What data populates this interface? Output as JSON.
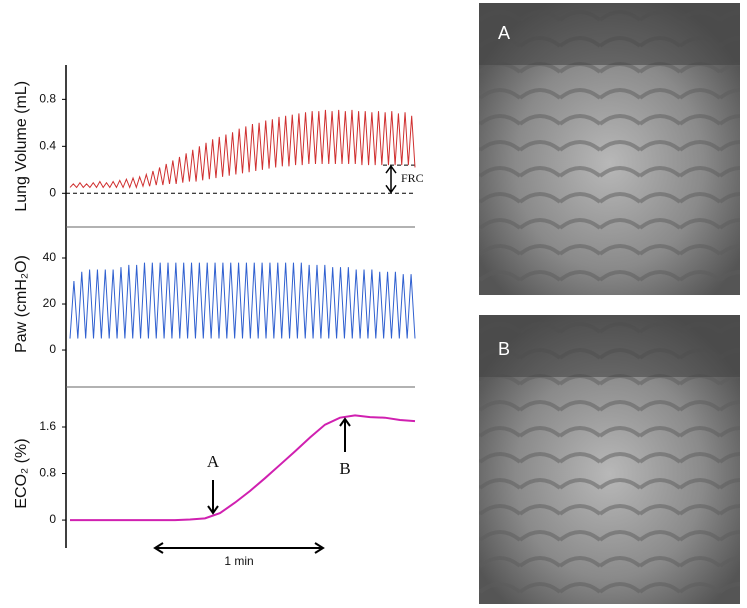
{
  "chart_data": [
    {
      "type": "line",
      "ylabel": "Lung Volume (mL)",
      "ylim": [
        -0.27,
        1.05
      ],
      "yticks": [
        0,
        0.4,
        0.8
      ],
      "color": "#d03030",
      "reference_lines": [
        0,
        0.24
      ],
      "annotations": [
        {
          "text": "FRC"
        }
      ],
      "values": [
        0.05,
        0.08,
        0.05,
        0.09,
        0.05,
        0.08,
        0.05,
        0.09,
        0.05,
        0.1,
        0.05,
        0.09,
        0.05,
        0.1,
        0.05,
        0.11,
        0.05,
        0.12,
        0.05,
        0.13,
        0.05,
        0.14,
        0.06,
        0.16,
        0.06,
        0.19,
        0.07,
        0.22,
        0.07,
        0.25,
        0.08,
        0.28,
        0.08,
        0.31,
        0.09,
        0.34,
        0.1,
        0.37,
        0.1,
        0.4,
        0.11,
        0.43,
        0.12,
        0.46,
        0.13,
        0.48,
        0.14,
        0.5,
        0.15,
        0.52,
        0.16,
        0.55,
        0.17,
        0.57,
        0.18,
        0.59,
        0.19,
        0.6,
        0.2,
        0.62,
        0.21,
        0.63,
        0.22,
        0.65,
        0.23,
        0.66,
        0.23,
        0.67,
        0.24,
        0.68,
        0.24,
        0.69,
        0.25,
        0.7,
        0.25,
        0.7,
        0.25,
        0.71,
        0.25,
        0.7,
        0.25,
        0.71,
        0.25,
        0.7,
        0.25,
        0.71,
        0.25,
        0.7,
        0.24,
        0.7,
        0.24,
        0.69,
        0.24,
        0.7,
        0.24,
        0.69,
        0.24,
        0.7,
        0.24,
        0.68,
        0.24,
        0.69,
        0.24,
        0.66,
        0.22
      ]
    },
    {
      "type": "line",
      "ylabel": "Paw (cmH₂O)",
      "ylim": [
        -15.2,
        50
      ],
      "yticks": [
        0,
        20,
        40
      ],
      "color": "#3060d0",
      "values": [
        5,
        30,
        5,
        34,
        5,
        35,
        5,
        35,
        5,
        35,
        5,
        35,
        5,
        36,
        5,
        37,
        5,
        37,
        5,
        38,
        5,
        38,
        5,
        38,
        5,
        38,
        5,
        38,
        5,
        38,
        5,
        38,
        5,
        38,
        5,
        38,
        5,
        38,
        5,
        38,
        5,
        38,
        5,
        38,
        5,
        38,
        5,
        38,
        5,
        38,
        5,
        38,
        5,
        38,
        5,
        38,
        5,
        38,
        5,
        38,
        5,
        37,
        5,
        37,
        5,
        37,
        5,
        36,
        5,
        36,
        5,
        36,
        5,
        35,
        5,
        35,
        5,
        35,
        5,
        34,
        5,
        34,
        5,
        34,
        5,
        33,
        5,
        33,
        5
      ]
    },
    {
      "type": "line",
      "ylabel": "ECO₂ (%)",
      "ylim": [
        -0.48,
        2.15
      ],
      "yticks": [
        0,
        0.8,
        1.6
      ],
      "color": "#d020b0",
      "annotations": [
        {
          "text": "A"
        },
        {
          "text": "B"
        },
        {
          "text": "1 min"
        }
      ],
      "values": [
        0,
        0,
        0,
        0,
        0,
        0,
        0,
        0,
        0.01,
        0.03,
        0.12,
        0.3,
        0.5,
        0.72,
        0.95,
        1.18,
        1.42,
        1.64,
        1.76,
        1.8,
        1.77,
        1.76,
        1.72,
        1.7
      ]
    }
  ],
  "images": [
    {
      "label": "A"
    },
    {
      "label": "B"
    }
  ]
}
